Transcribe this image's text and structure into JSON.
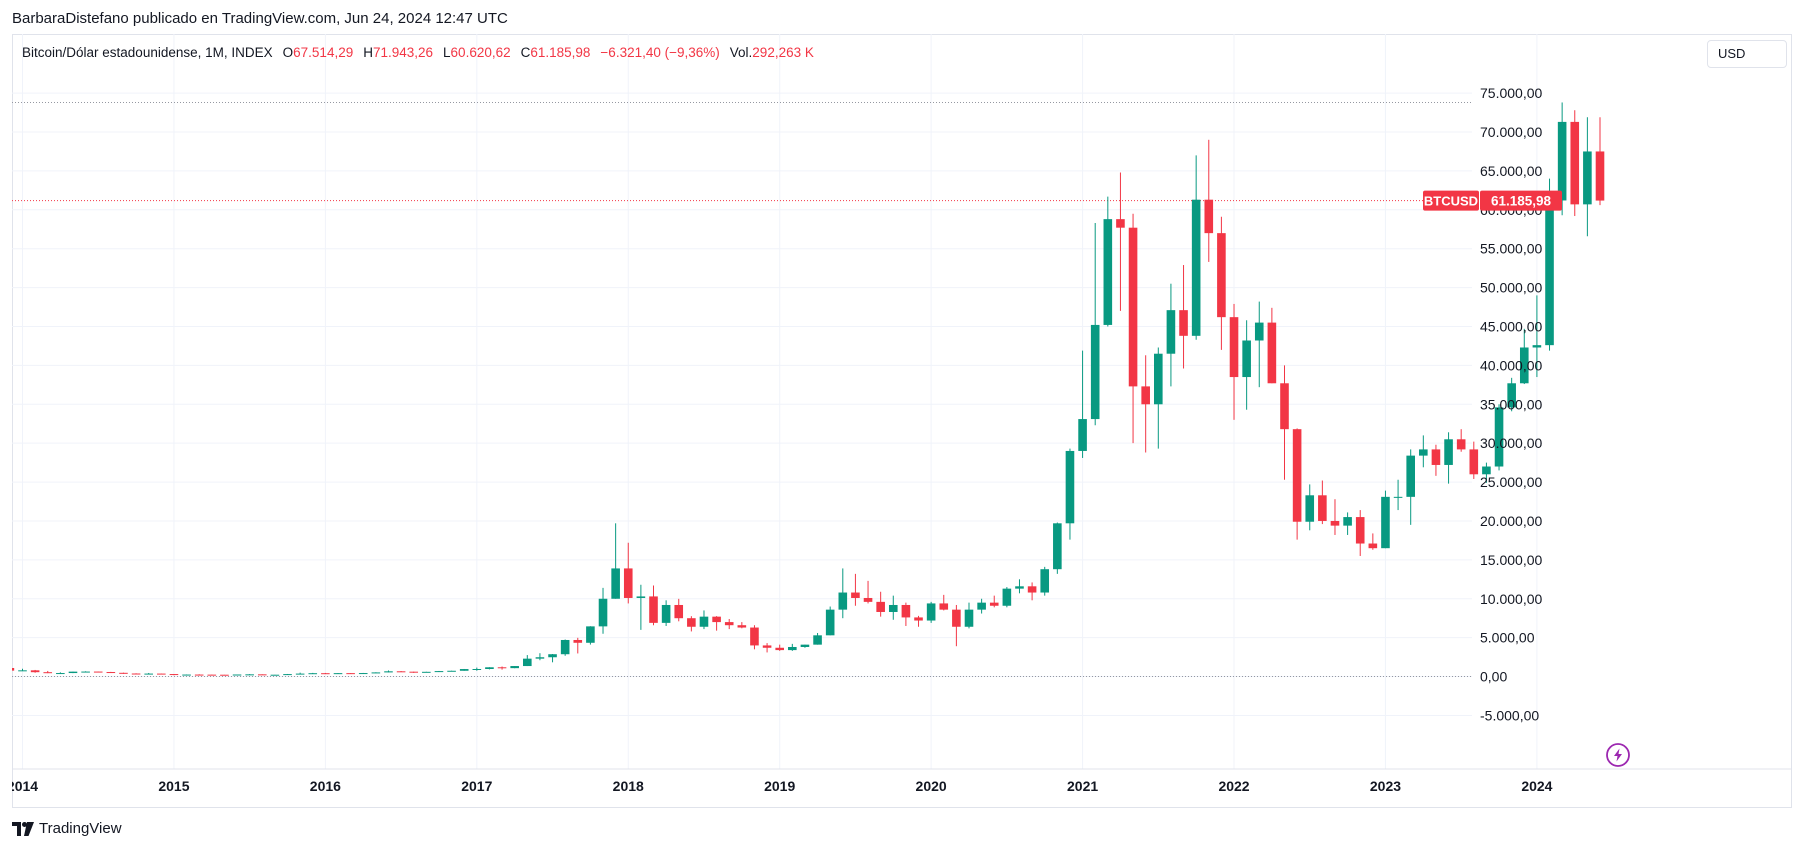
{
  "header": {
    "publisher_text": "BarbaraDistefano publicado en TradingView.com, Jun 24, 2024 12:47 UTC"
  },
  "legend": {
    "symbol": "Bitcoin/Dólar estadounidense, 1M, INDEX",
    "open_label": "O",
    "open_value": "67.514,29",
    "high_label": "H",
    "high_value": "71.943,26",
    "low_label": "L",
    "low_value": "60.620,62",
    "close_label": "C",
    "close_value": "61.185,98",
    "change_value": "−6.321,40 (−9,36%)",
    "vol_label": "Vol.",
    "vol_value": "292,263 K"
  },
  "currency_button": "USD",
  "footer": {
    "brand": "TradingView"
  },
  "colors": {
    "up": "#089981",
    "down": "#f23645",
    "grid": "#f0f3fa",
    "text": "#131722"
  },
  "chart_data": {
    "type": "candlestick",
    "title": "Bitcoin/Dólar estadounidense, 1M, INDEX",
    "x_labels": [
      "2014",
      "2015",
      "2016",
      "2017",
      "2018",
      "2019",
      "2020",
      "2021",
      "2022",
      "2023",
      "2024"
    ],
    "y_ticks": [
      -5000,
      0,
      5000,
      10000,
      15000,
      20000,
      25000,
      30000,
      35000,
      40000,
      45000,
      50000,
      55000,
      60000,
      65000,
      70000,
      75000
    ],
    "y_tick_labels": [
      "-5.000,00",
      "0,00",
      "5.000,00",
      "10.000,00",
      "15.000,00",
      "20.000,00",
      "25.000,00",
      "30.000,00",
      "35.000,00",
      "40.000,00",
      "45.000,00",
      "50.000,00",
      "55.000,00",
      "60.000,00",
      "65.000,00",
      "70.000,00",
      "75.000,00"
    ],
    "ylim": [
      -7000,
      79000
    ],
    "last_price_label": "61.185,98",
    "last_price_value": 61185.98,
    "ticker_label": "BTCUSD",
    "high_line_value": 73800,
    "zero_line_value": 0,
    "candles": [
      {
        "t": "2013-12",
        "o": 1100,
        "h": 1160,
        "l": 520,
        "c": 760
      },
      {
        "t": "2014-01",
        "o": 760,
        "h": 1000,
        "l": 740,
        "c": 800
      },
      {
        "t": "2014-02",
        "o": 800,
        "h": 850,
        "l": 490,
        "c": 560
      },
      {
        "t": "2014-03",
        "o": 560,
        "h": 720,
        "l": 440,
        "c": 450
      },
      {
        "t": "2014-04",
        "o": 450,
        "h": 540,
        "l": 340,
        "c": 450
      },
      {
        "t": "2014-05",
        "o": 450,
        "h": 630,
        "l": 440,
        "c": 630
      },
      {
        "t": "2014-06",
        "o": 630,
        "h": 680,
        "l": 550,
        "c": 640
      },
      {
        "t": "2014-07",
        "o": 640,
        "h": 640,
        "l": 560,
        "c": 580
      },
      {
        "t": "2014-08",
        "o": 580,
        "h": 600,
        "l": 450,
        "c": 480
      },
      {
        "t": "2014-09",
        "o": 480,
        "h": 500,
        "l": 350,
        "c": 390
      },
      {
        "t": "2014-10",
        "o": 390,
        "h": 420,
        "l": 290,
        "c": 340
      },
      {
        "t": "2014-11",
        "o": 340,
        "h": 460,
        "l": 320,
        "c": 380
      },
      {
        "t": "2014-12",
        "o": 380,
        "h": 390,
        "l": 310,
        "c": 320
      },
      {
        "t": "2015-01",
        "o": 320,
        "h": 320,
        "l": 170,
        "c": 220
      },
      {
        "t": "2015-02",
        "o": 220,
        "h": 270,
        "l": 210,
        "c": 255
      },
      {
        "t": "2015-03",
        "o": 255,
        "h": 300,
        "l": 240,
        "c": 245
      },
      {
        "t": "2015-04",
        "o": 245,
        "h": 260,
        "l": 215,
        "c": 235
      },
      {
        "t": "2015-05",
        "o": 235,
        "h": 245,
        "l": 225,
        "c": 230
      },
      {
        "t": "2015-06",
        "o": 230,
        "h": 265,
        "l": 220,
        "c": 262
      },
      {
        "t": "2015-07",
        "o": 262,
        "h": 315,
        "l": 255,
        "c": 283
      },
      {
        "t": "2015-08",
        "o": 283,
        "h": 285,
        "l": 200,
        "c": 230
      },
      {
        "t": "2015-09",
        "o": 230,
        "h": 245,
        "l": 225,
        "c": 236
      },
      {
        "t": "2015-10",
        "o": 236,
        "h": 330,
        "l": 235,
        "c": 314
      },
      {
        "t": "2015-11",
        "o": 314,
        "h": 500,
        "l": 310,
        "c": 378
      },
      {
        "t": "2015-12",
        "o": 378,
        "h": 470,
        "l": 350,
        "c": 430
      },
      {
        "t": "2016-01",
        "o": 430,
        "h": 465,
        "l": 360,
        "c": 368
      },
      {
        "t": "2016-02",
        "o": 368,
        "h": 445,
        "l": 365,
        "c": 437
      },
      {
        "t": "2016-03",
        "o": 437,
        "h": 440,
        "l": 400,
        "c": 416
      },
      {
        "t": "2016-04",
        "o": 416,
        "h": 465,
        "l": 415,
        "c": 449
      },
      {
        "t": "2016-05",
        "o": 449,
        "h": 550,
        "l": 440,
        "c": 531
      },
      {
        "t": "2016-06",
        "o": 531,
        "h": 780,
        "l": 530,
        "c": 673
      },
      {
        "t": "2016-07",
        "o": 673,
        "h": 705,
        "l": 605,
        "c": 624
      },
      {
        "t": "2016-08",
        "o": 624,
        "h": 625,
        "l": 470,
        "c": 573
      },
      {
        "t": "2016-09",
        "o": 573,
        "h": 615,
        "l": 565,
        "c": 608
      },
      {
        "t": "2016-10",
        "o": 608,
        "h": 720,
        "l": 605,
        "c": 700
      },
      {
        "t": "2016-11",
        "o": 700,
        "h": 750,
        "l": 690,
        "c": 742
      },
      {
        "t": "2016-12",
        "o": 742,
        "h": 975,
        "l": 745,
        "c": 963
      },
      {
        "t": "2017-01",
        "o": 963,
        "h": 1150,
        "l": 750,
        "c": 970
      },
      {
        "t": "2017-02",
        "o": 970,
        "h": 1200,
        "l": 920,
        "c": 1190
      },
      {
        "t": "2017-03",
        "o": 1190,
        "h": 1290,
        "l": 890,
        "c": 1080
      },
      {
        "t": "2017-04",
        "o": 1080,
        "h": 1350,
        "l": 1070,
        "c": 1350
      },
      {
        "t": "2017-05",
        "o": 1350,
        "h": 2760,
        "l": 1350,
        "c": 2300
      },
      {
        "t": "2017-06",
        "o": 2300,
        "h": 3000,
        "l": 2100,
        "c": 2480
      },
      {
        "t": "2017-07",
        "o": 2480,
        "h": 2900,
        "l": 1830,
        "c": 2870
      },
      {
        "t": "2017-08",
        "o": 2870,
        "h": 4760,
        "l": 2670,
        "c": 4700
      },
      {
        "t": "2017-09",
        "o": 4700,
        "h": 4980,
        "l": 2970,
        "c": 4340
      },
      {
        "t": "2017-10",
        "o": 4340,
        "h": 6470,
        "l": 4110,
        "c": 6450
      },
      {
        "t": "2017-11",
        "o": 6450,
        "h": 11400,
        "l": 5500,
        "c": 10000
      },
      {
        "t": "2017-12",
        "o": 10000,
        "h": 19700,
        "l": 10000,
        "c": 13900
      },
      {
        "t": "2018-01",
        "o": 13900,
        "h": 17200,
        "l": 9400,
        "c": 10100
      },
      {
        "t": "2018-02",
        "o": 10100,
        "h": 11800,
        "l": 6000,
        "c": 10300
      },
      {
        "t": "2018-03",
        "o": 10300,
        "h": 11700,
        "l": 6600,
        "c": 6900
      },
      {
        "t": "2018-04",
        "o": 6900,
        "h": 9800,
        "l": 6500,
        "c": 9200
      },
      {
        "t": "2018-05",
        "o": 9200,
        "h": 9990,
        "l": 7100,
        "c": 7500
      },
      {
        "t": "2018-06",
        "o": 7500,
        "h": 7760,
        "l": 5800,
        "c": 6400
      },
      {
        "t": "2018-07",
        "o": 6400,
        "h": 8500,
        "l": 6100,
        "c": 7700
      },
      {
        "t": "2018-08",
        "o": 7700,
        "h": 7770,
        "l": 5900,
        "c": 7000
      },
      {
        "t": "2018-09",
        "o": 7000,
        "h": 7400,
        "l": 6100,
        "c": 6600
      },
      {
        "t": "2018-10",
        "o": 6600,
        "h": 7000,
        "l": 6200,
        "c": 6300
      },
      {
        "t": "2018-11",
        "o": 6300,
        "h": 6600,
        "l": 3500,
        "c": 4000
      },
      {
        "t": "2018-12",
        "o": 4000,
        "h": 4300,
        "l": 3100,
        "c": 3700
      },
      {
        "t": "2019-01",
        "o": 3700,
        "h": 4100,
        "l": 3300,
        "c": 3400
      },
      {
        "t": "2019-02",
        "o": 3400,
        "h": 4200,
        "l": 3300,
        "c": 3800
      },
      {
        "t": "2019-03",
        "o": 3800,
        "h": 4100,
        "l": 3700,
        "c": 4100
      },
      {
        "t": "2019-04",
        "o": 4100,
        "h": 5600,
        "l": 4100,
        "c": 5300
      },
      {
        "t": "2019-05",
        "o": 5300,
        "h": 9000,
        "l": 5300,
        "c": 8600
      },
      {
        "t": "2019-06",
        "o": 8600,
        "h": 13900,
        "l": 7500,
        "c": 10800
      },
      {
        "t": "2019-07",
        "o": 10800,
        "h": 13200,
        "l": 9100,
        "c": 10100
      },
      {
        "t": "2019-08",
        "o": 10100,
        "h": 12300,
        "l": 9400,
        "c": 9600
      },
      {
        "t": "2019-09",
        "o": 9600,
        "h": 10900,
        "l": 7700,
        "c": 8300
      },
      {
        "t": "2019-10",
        "o": 8300,
        "h": 10400,
        "l": 7300,
        "c": 9200
      },
      {
        "t": "2019-11",
        "o": 9200,
        "h": 9500,
        "l": 6500,
        "c": 7600
      },
      {
        "t": "2019-12",
        "o": 7600,
        "h": 7800,
        "l": 6400,
        "c": 7200
      },
      {
        "t": "2020-01",
        "o": 7200,
        "h": 9600,
        "l": 6900,
        "c": 9400
      },
      {
        "t": "2020-02",
        "o": 9400,
        "h": 10500,
        "l": 8500,
        "c": 8600
      },
      {
        "t": "2020-03",
        "o": 8600,
        "h": 9200,
        "l": 3900,
        "c": 6400
      },
      {
        "t": "2020-04",
        "o": 6400,
        "h": 9500,
        "l": 6200,
        "c": 8600
      },
      {
        "t": "2020-05",
        "o": 8600,
        "h": 10000,
        "l": 8100,
        "c": 9500
      },
      {
        "t": "2020-06",
        "o": 9500,
        "h": 10400,
        "l": 8900,
        "c": 9100
      },
      {
        "t": "2020-07",
        "o": 9100,
        "h": 11500,
        "l": 8900,
        "c": 11300
      },
      {
        "t": "2020-08",
        "o": 11300,
        "h": 12500,
        "l": 10700,
        "c": 11600
      },
      {
        "t": "2020-09",
        "o": 11600,
        "h": 12100,
        "l": 9800,
        "c": 10800
      },
      {
        "t": "2020-10",
        "o": 10800,
        "h": 14100,
        "l": 10400,
        "c": 13800
      },
      {
        "t": "2020-11",
        "o": 13800,
        "h": 19800,
        "l": 13200,
        "c": 19700
      },
      {
        "t": "2020-12",
        "o": 19700,
        "h": 29300,
        "l": 17600,
        "c": 29000
      },
      {
        "t": "2021-01",
        "o": 29000,
        "h": 41900,
        "l": 28100,
        "c": 33100
      },
      {
        "t": "2021-02",
        "o": 33100,
        "h": 58300,
        "l": 32300,
        "c": 45200
      },
      {
        "t": "2021-03",
        "o": 45200,
        "h": 61700,
        "l": 45000,
        "c": 58800
      },
      {
        "t": "2021-04",
        "o": 58800,
        "h": 64800,
        "l": 47000,
        "c": 57700
      },
      {
        "t": "2021-05",
        "o": 57700,
        "h": 59500,
        "l": 30000,
        "c": 37300
      },
      {
        "t": "2021-06",
        "o": 37300,
        "h": 41300,
        "l": 28800,
        "c": 35000
      },
      {
        "t": "2021-07",
        "o": 35000,
        "h": 42300,
        "l": 29300,
        "c": 41500
      },
      {
        "t": "2021-08",
        "o": 41500,
        "h": 50500,
        "l": 37300,
        "c": 47100
      },
      {
        "t": "2021-09",
        "o": 47100,
        "h": 52900,
        "l": 39600,
        "c": 43800
      },
      {
        "t": "2021-10",
        "o": 43800,
        "h": 67000,
        "l": 43300,
        "c": 61300
      },
      {
        "t": "2021-11",
        "o": 61300,
        "h": 69000,
        "l": 53300,
        "c": 57000
      },
      {
        "t": "2021-12",
        "o": 57000,
        "h": 59100,
        "l": 42000,
        "c": 46200
      },
      {
        "t": "2022-01",
        "o": 46200,
        "h": 47900,
        "l": 33000,
        "c": 38500
      },
      {
        "t": "2022-02",
        "o": 38500,
        "h": 45800,
        "l": 34300,
        "c": 43200
      },
      {
        "t": "2022-03",
        "o": 43200,
        "h": 48200,
        "l": 37200,
        "c": 45500
      },
      {
        "t": "2022-04",
        "o": 45500,
        "h": 47400,
        "l": 37700,
        "c": 37700
      },
      {
        "t": "2022-05",
        "o": 37700,
        "h": 40000,
        "l": 25300,
        "c": 31800
      },
      {
        "t": "2022-06",
        "o": 31800,
        "h": 31900,
        "l": 17600,
        "c": 19900
      },
      {
        "t": "2022-07",
        "o": 19900,
        "h": 24700,
        "l": 18800,
        "c": 23300
      },
      {
        "t": "2022-08",
        "o": 23300,
        "h": 25200,
        "l": 19600,
        "c": 20000
      },
      {
        "t": "2022-09",
        "o": 20000,
        "h": 22800,
        "l": 18200,
        "c": 19400
      },
      {
        "t": "2022-10",
        "o": 19400,
        "h": 21100,
        "l": 18200,
        "c": 20500
      },
      {
        "t": "2022-11",
        "o": 20500,
        "h": 21400,
        "l": 15500,
        "c": 17100
      },
      {
        "t": "2022-12",
        "o": 17100,
        "h": 18400,
        "l": 16300,
        "c": 16500
      },
      {
        "t": "2023-01",
        "o": 16500,
        "h": 23900,
        "l": 16500,
        "c": 23100
      },
      {
        "t": "2023-02",
        "o": 23100,
        "h": 25300,
        "l": 21400,
        "c": 23100
      },
      {
        "t": "2023-03",
        "o": 23100,
        "h": 29200,
        "l": 19500,
        "c": 28400
      },
      {
        "t": "2023-04",
        "o": 28400,
        "h": 31000,
        "l": 26900,
        "c": 29200
      },
      {
        "t": "2023-05",
        "o": 29200,
        "h": 29800,
        "l": 25800,
        "c": 27200
      },
      {
        "t": "2023-06",
        "o": 27200,
        "h": 31400,
        "l": 24800,
        "c": 30500
      },
      {
        "t": "2023-07",
        "o": 30500,
        "h": 31800,
        "l": 28900,
        "c": 29200
      },
      {
        "t": "2023-08",
        "o": 29200,
        "h": 30200,
        "l": 25400,
        "c": 26000
      },
      {
        "t": "2023-09",
        "o": 26000,
        "h": 27500,
        "l": 24900,
        "c": 27000
      },
      {
        "t": "2023-10",
        "o": 27000,
        "h": 35000,
        "l": 26500,
        "c": 34600
      },
      {
        "t": "2023-11",
        "o": 34600,
        "h": 38400,
        "l": 34100,
        "c": 37700
      },
      {
        "t": "2023-12",
        "o": 37700,
        "h": 44700,
        "l": 37600,
        "c": 42300
      },
      {
        "t": "2024-01",
        "o": 42300,
        "h": 49000,
        "l": 38500,
        "c": 42600
      },
      {
        "t": "2024-02",
        "o": 42600,
        "h": 64000,
        "l": 41900,
        "c": 61200
      },
      {
        "t": "2024-03",
        "o": 61200,
        "h": 73800,
        "l": 59300,
        "c": 71300
      },
      {
        "t": "2024-04",
        "o": 71300,
        "h": 72800,
        "l": 59200,
        "c": 60700
      },
      {
        "t": "2024-05",
        "o": 60700,
        "h": 71900,
        "l": 56600,
        "c": 67500
      },
      {
        "t": "2024-06",
        "o": 67500,
        "h": 71900,
        "l": 60600,
        "c": 61186
      }
    ]
  }
}
